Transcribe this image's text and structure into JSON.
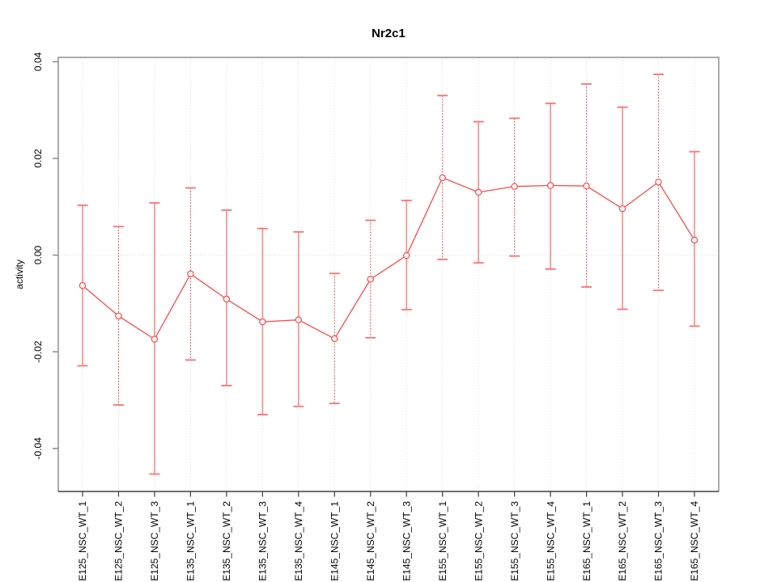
{
  "chart_data": {
    "type": "line",
    "title": "Nr2c1",
    "ylabel": "activity",
    "xlabel": "",
    "legend": "none",
    "categories": [
      "E125_NSC_WT_1",
      "E125_NSC_WT_2",
      "E125_NSC_WT_3",
      "E135_NSC_WT_1",
      "E135_NSC_WT_2",
      "E135_NSC_WT_3",
      "E135_NSC_WT_4",
      "E145_NSC_WT_1",
      "E145_NSC_WT_2",
      "E145_NSC_WT_3",
      "E155_NSC_WT_1",
      "E155_NSC_WT_2",
      "E155_NSC_WT_3",
      "E155_NSC_WT_4",
      "E165_NSC_WT_1",
      "E165_NSC_WT_2",
      "E165_NSC_WT_3",
      "E165_NSC_WT_4"
    ],
    "series": [
      {
        "name": "activity",
        "values": [
          -0.0063,
          -0.0126,
          -0.0174,
          -0.0039,
          -0.0091,
          -0.0138,
          -0.0134,
          -0.0173,
          -0.005,
          -0.0001,
          0.016,
          0.013,
          0.0142,
          0.0144,
          0.0143,
          0.0096,
          0.0151,
          0.0031
        ],
        "upper": [
          0.0103,
          0.0059,
          0.0108,
          0.0139,
          0.0093,
          0.0055,
          0.0048,
          -0.0038,
          0.0072,
          0.0113,
          0.033,
          0.0276,
          0.0283,
          0.0314,
          0.0354,
          0.0306,
          0.0374,
          0.0214
        ],
        "lower": [
          -0.0229,
          -0.031,
          -0.0453,
          -0.0217,
          -0.027,
          -0.033,
          -0.0313,
          -0.0307,
          -0.0171,
          -0.0113,
          -0.0009,
          -0.0016,
          -0.0002,
          -0.0029,
          -0.0066,
          -0.0112,
          -0.0073,
          -0.0147
        ]
      }
    ],
    "yticks": [
      -0.04,
      -0.02,
      0.0,
      0.02,
      0.04
    ],
    "ytick_labels": [
      "-0.04",
      "-0.02",
      "0.00",
      "0.02",
      "0.04"
    ],
    "ylim": [
      -0.0489,
      0.0409
    ],
    "grid": {
      "vertical_dotted_per_category": true,
      "horizontal_dotted_at_zero": true
    },
    "stem_dashed": [
      false,
      true,
      false,
      true,
      false,
      false,
      false,
      true,
      true,
      false,
      true,
      false,
      true,
      false,
      true,
      false,
      true,
      false
    ],
    "colors": {
      "series": "#ff4a4a",
      "stem_solid": "#ff9191",
      "stem_dashed": "#ee3f3f",
      "cap": "#ff7272",
      "grid": "#d9d9d9",
      "box": "#909090",
      "bottom_axis": "#3c3c3c",
      "left_ticks": "#8c8c8c",
      "text": "#000000",
      "background": "#ffffff"
    }
  }
}
